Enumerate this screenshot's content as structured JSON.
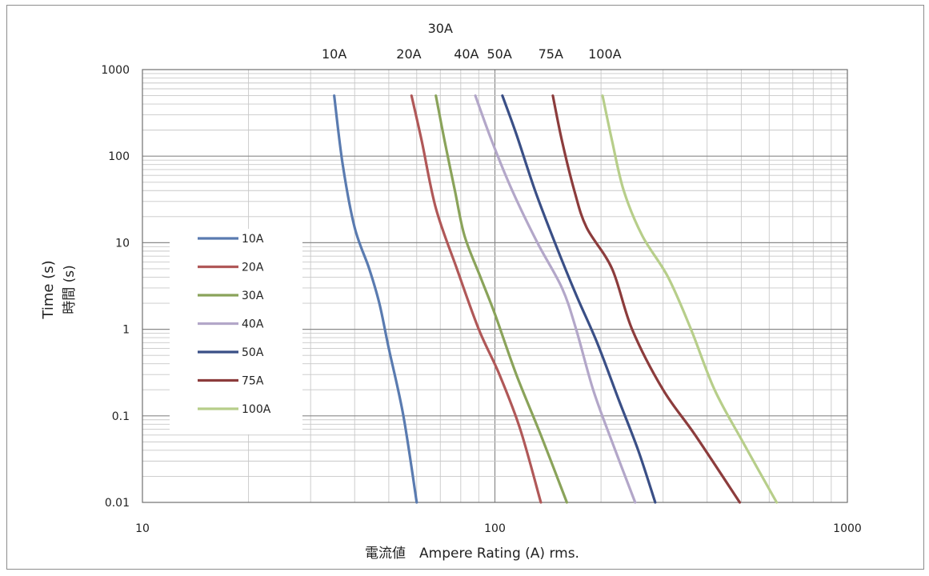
{
  "chart_data": {
    "type": "line",
    "title": "",
    "xlabel": "電流値　Ampere Rating (A) rms.",
    "ylabel": "Time (s)",
    "ylabel2": "時間 (s)",
    "xscale": "log",
    "yscale": "log",
    "xlim": [
      10,
      1000
    ],
    "ylim": [
      0.01,
      1000
    ],
    "x_ticks": [
      {
        "value": 10,
        "label": "10"
      },
      {
        "value": 100,
        "label": "100"
      },
      {
        "value": 1000,
        "label": "1000"
      }
    ],
    "y_ticks": [
      {
        "value": 1000,
        "label": "1000"
      },
      {
        "value": 100,
        "label": "100"
      },
      {
        "value": 10,
        "label": "10"
      },
      {
        "value": 1,
        "label": "1"
      },
      {
        "value": 0.1,
        "label": "0.1"
      },
      {
        "value": 0.01,
        "label": "0.01"
      }
    ],
    "grid": true,
    "legend_position": "left",
    "top_labels": [
      {
        "text": "10A",
        "x": 35
      },
      {
        "text": "20A",
        "x": 57
      },
      {
        "text": "30A",
        "x": 70,
        "raised": true
      },
      {
        "text": "40A",
        "x": 83
      },
      {
        "text": "50A",
        "x": 103
      },
      {
        "text": "75A",
        "x": 144
      },
      {
        "text": "100A",
        "x": 205
      }
    ],
    "series": [
      {
        "name": "10A",
        "color": "#5a7bb0",
        "points": [
          [
            35,
            500
          ],
          [
            37,
            80
          ],
          [
            40,
            15
          ],
          [
            44,
            5
          ],
          [
            47,
            2
          ],
          [
            50,
            0.6
          ],
          [
            55,
            0.1
          ],
          [
            60,
            0.01
          ]
        ]
      },
      {
        "name": "20A",
        "color": "#b05858",
        "points": [
          [
            58,
            500
          ],
          [
            62,
            150
          ],
          [
            68,
            25
          ],
          [
            78,
            5
          ],
          [
            90,
            1
          ],
          [
            103,
            0.3
          ],
          [
            118,
            0.07
          ],
          [
            135,
            0.01
          ]
        ]
      },
      {
        "name": "30A",
        "color": "#8aa35a",
        "points": [
          [
            68,
            500
          ],
          [
            72,
            150
          ],
          [
            77,
            40
          ],
          [
            82,
            12
          ],
          [
            91,
            4
          ],
          [
            100,
            1.5
          ],
          [
            115,
            0.3
          ],
          [
            135,
            0.06
          ],
          [
            160,
            0.01
          ]
        ]
      },
      {
        "name": "40A",
        "color": "#b3a7c9",
        "points": [
          [
            88,
            500
          ],
          [
            98,
            150
          ],
          [
            112,
            40
          ],
          [
            132,
            10
          ],
          [
            155,
            3
          ],
          [
            170,
            1
          ],
          [
            190,
            0.2
          ],
          [
            215,
            0.05
          ],
          [
            250,
            0.01
          ]
        ]
      },
      {
        "name": "50A",
        "color": "#3a4f86",
        "points": [
          [
            105,
            500
          ],
          [
            115,
            180
          ],
          [
            130,
            40
          ],
          [
            148,
            10
          ],
          [
            170,
            2.5
          ],
          [
            195,
            0.7
          ],
          [
            225,
            0.15
          ],
          [
            255,
            0.04
          ],
          [
            285,
            0.01
          ]
        ]
      },
      {
        "name": "75A",
        "color": "#8c3c3c",
        "points": [
          [
            146,
            500
          ],
          [
            155,
            150
          ],
          [
            168,
            40
          ],
          [
            182,
            15
          ],
          [
            215,
            5
          ],
          [
            245,
            1
          ],
          [
            300,
            0.2
          ],
          [
            370,
            0.06
          ],
          [
            495,
            0.01
          ]
        ]
      },
      {
        "name": "100A",
        "color": "#b7ce8a",
        "points": [
          [
            202,
            500
          ],
          [
            215,
            150
          ],
          [
            232,
            40
          ],
          [
            262,
            12
          ],
          [
            310,
            4
          ],
          [
            360,
            1
          ],
          [
            420,
            0.2
          ],
          [
            505,
            0.05
          ],
          [
            630,
            0.01
          ]
        ]
      }
    ]
  }
}
